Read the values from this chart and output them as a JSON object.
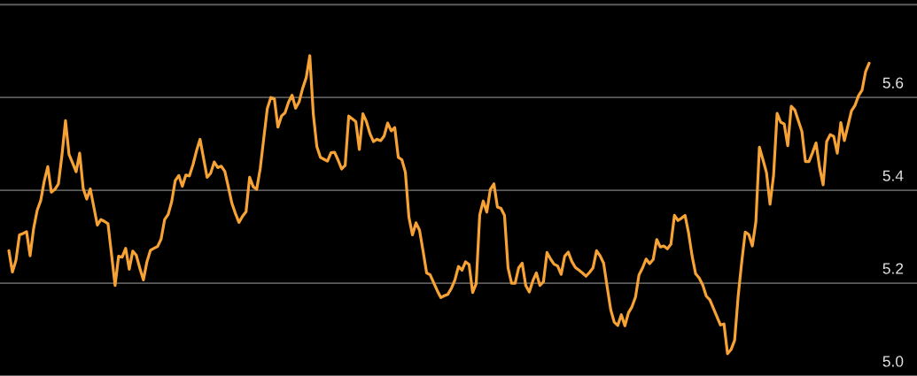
{
  "chart_data": {
    "type": "line",
    "categories": [
      null,
      null,
      null,
      null,
      null,
      null,
      null,
      null,
      null,
      null,
      null,
      null,
      null,
      null,
      null,
      null,
      null,
      null,
      null,
      null,
      null,
      null,
      null,
      null,
      null,
      null,
      null,
      null,
      null,
      null,
      null,
      null,
      null,
      null,
      null,
      null,
      null,
      null,
      null,
      null,
      null,
      null,
      null,
      null,
      null,
      null,
      null,
      null,
      null,
      null,
      null,
      null,
      null,
      null,
      null,
      null,
      null,
      null,
      null,
      null,
      null,
      null,
      null,
      null,
      null,
      null,
      null,
      null,
      null,
      null,
      null,
      null,
      null,
      null,
      null,
      null,
      null,
      null,
      null,
      null,
      null,
      null,
      null,
      null,
      null,
      null,
      null,
      null,
      null,
      null,
      null,
      null,
      null,
      null,
      null,
      null,
      null,
      null,
      null,
      null,
      null,
      null,
      null,
      null,
      null,
      null,
      null,
      null,
      null,
      null,
      null,
      null,
      null,
      null,
      null,
      null,
      null,
      null,
      null,
      null,
      null,
      null,
      null,
      null,
      null,
      null,
      null,
      null,
      null,
      null,
      null,
      null,
      null,
      null,
      null,
      null,
      null,
      null,
      null,
      null,
      null,
      null,
      null,
      null,
      null,
      null,
      null,
      null,
      null,
      null,
      null,
      null,
      null,
      null,
      null,
      null,
      null,
      null,
      null,
      null,
      null,
      null,
      null,
      null,
      null,
      null,
      null,
      null,
      null,
      null,
      null,
      null,
      null,
      null,
      null,
      null,
      null,
      null,
      null,
      null,
      null,
      null,
      null,
      null,
      null,
      null,
      null,
      null,
      null,
      null,
      null,
      null,
      null,
      null,
      null,
      null,
      null,
      null,
      null,
      null,
      null,
      null,
      null,
      null,
      null,
      null,
      null,
      null,
      null,
      null,
      null,
      null,
      null,
      null,
      null,
      null,
      null,
      null,
      null,
      null,
      null,
      null,
      null,
      null,
      null,
      null,
      null,
      null,
      null,
      null,
      null,
      null,
      null,
      null,
      null,
      null,
      null,
      null,
      null,
      null,
      null,
      null,
      null,
      null
    ],
    "series": [
      {
        "color": "#f7a234",
        "values": [
          5.27,
          5.224,
          5.249,
          5.304,
          5.307,
          5.311,
          5.259,
          5.318,
          5.357,
          5.378,
          5.42,
          5.451,
          5.396,
          5.402,
          5.414,
          5.476,
          5.55,
          5.477,
          5.459,
          5.44,
          5.48,
          5.404,
          5.381,
          5.403,
          5.364,
          5.325,
          5.337,
          5.333,
          5.328,
          5.262,
          5.195,
          5.258,
          5.256,
          5.275,
          5.23,
          5.269,
          5.26,
          5.232,
          5.207,
          5.246,
          5.271,
          5.275,
          5.279,
          5.295,
          5.337,
          5.348,
          5.376,
          5.421,
          5.432,
          5.409,
          5.433,
          5.431,
          5.455,
          5.485,
          5.51,
          5.469,
          5.428,
          5.437,
          5.461,
          5.449,
          5.452,
          5.441,
          5.407,
          5.372,
          5.35,
          5.331,
          5.344,
          5.354,
          5.428,
          5.408,
          5.402,
          5.447,
          5.512,
          5.576,
          5.6,
          5.597,
          5.536,
          5.56,
          5.567,
          5.59,
          5.605,
          5.577,
          5.591,
          5.62,
          5.643,
          5.69,
          5.564,
          5.494,
          5.471,
          5.467,
          5.463,
          5.481,
          5.482,
          5.465,
          5.446,
          5.454,
          5.56,
          5.554,
          5.548,
          5.488,
          5.565,
          5.548,
          5.522,
          5.505,
          5.51,
          5.507,
          5.517,
          5.545,
          5.528,
          5.535,
          5.471,
          5.466,
          5.439,
          5.342,
          5.304,
          5.33,
          5.314,
          5.269,
          5.222,
          5.218,
          5.201,
          5.184,
          5.169,
          5.173,
          5.176,
          5.189,
          5.207,
          5.236,
          5.228,
          5.246,
          5.24,
          5.18,
          5.199,
          5.347,
          5.377,
          5.353,
          5.402,
          5.414,
          5.364,
          5.361,
          5.346,
          5.233,
          5.2,
          5.2,
          5.233,
          5.243,
          5.195,
          5.181,
          5.205,
          5.222,
          5.195,
          5.203,
          5.266,
          5.252,
          5.241,
          5.237,
          5.219,
          5.258,
          5.267,
          5.247,
          5.234,
          5.228,
          5.222,
          5.215,
          5.223,
          5.233,
          5.27,
          5.259,
          5.243,
          5.192,
          5.143,
          5.116,
          5.109,
          5.132,
          5.108,
          5.136,
          5.149,
          5.17,
          5.218,
          5.233,
          5.252,
          5.242,
          5.251,
          5.294,
          5.278,
          5.28,
          5.274,
          5.284,
          5.346,
          5.335,
          5.34,
          5.346,
          5.308,
          5.258,
          5.22,
          5.211,
          5.196,
          5.172,
          5.164,
          5.146,
          5.128,
          5.11,
          5.112,
          5.048,
          5.057,
          5.077,
          5.172,
          5.245,
          5.31,
          5.305,
          5.28,
          5.332,
          5.493,
          5.466,
          5.438,
          5.37,
          5.432,
          5.566,
          5.547,
          5.543,
          5.496,
          5.581,
          5.573,
          5.55,
          5.527,
          5.462,
          5.462,
          5.481,
          5.502,
          5.449,
          5.412,
          5.505,
          5.52,
          5.516,
          5.48,
          5.546,
          5.507,
          5.539,
          5.571,
          5.583,
          5.604,
          5.616,
          5.656,
          5.674
        ]
      }
    ],
    "ylim": [
      5.0,
      5.81
    ],
    "yticks": [
      {
        "value": 5.0,
        "label": "5.0"
      },
      5.2,
      5.4,
      5.6,
      {
        "value": 5.8,
        "label": null
      }
    ],
    "grid": "y",
    "tick_labels": "y"
  }
}
